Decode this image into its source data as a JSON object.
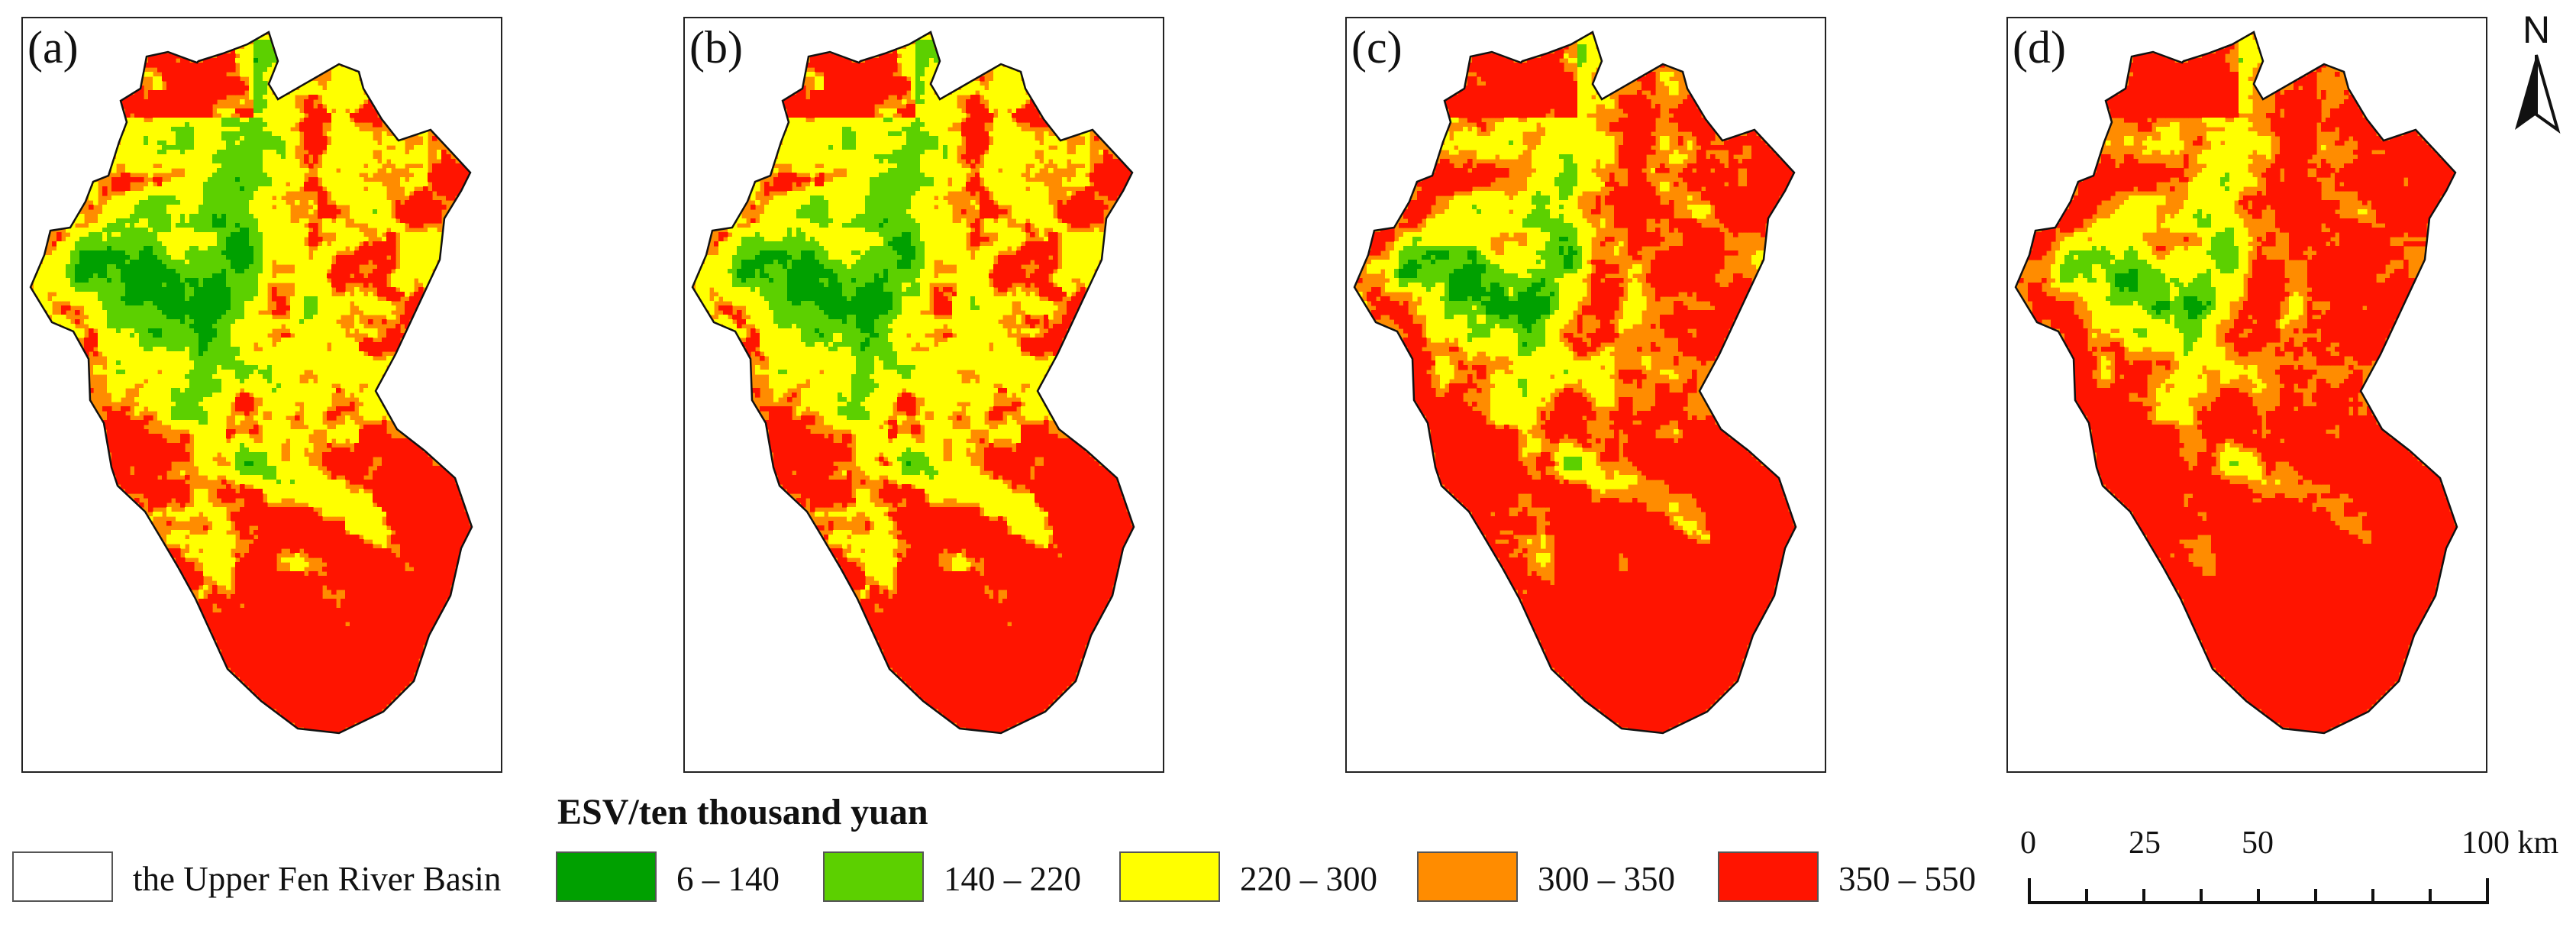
{
  "panels": [
    {
      "label": "(a)",
      "dist": [
        0.04,
        0.12,
        0.34,
        0.14,
        0.36
      ]
    },
    {
      "label": "(b)",
      "dist": [
        0.03,
        0.1,
        0.36,
        0.13,
        0.38
      ]
    },
    {
      "label": "(c)",
      "dist": [
        0.02,
        0.05,
        0.17,
        0.2,
        0.56
      ]
    },
    {
      "label": "(d)",
      "dist": [
        0.005,
        0.035,
        0.13,
        0.18,
        0.65
      ]
    }
  ],
  "north_arrow": {
    "label": "N"
  },
  "legend": {
    "title": "ESV/ten thousand yuan",
    "boundary_label": "the Upper Fen River Basin",
    "classes": [
      {
        "label": "6 – 140",
        "color": "#00A000"
      },
      {
        "label": "140 – 220",
        "color": "#5CD000"
      },
      {
        "label": "220 – 300",
        "color": "#FFFF00"
      },
      {
        "label": "300 – 350",
        "color": "#FF8C00"
      },
      {
        "label": "350 – 550",
        "color": "#FF1400"
      }
    ]
  },
  "scale_bar": {
    "labels": [
      "0",
      "25",
      "50",
      "100 km"
    ]
  }
}
